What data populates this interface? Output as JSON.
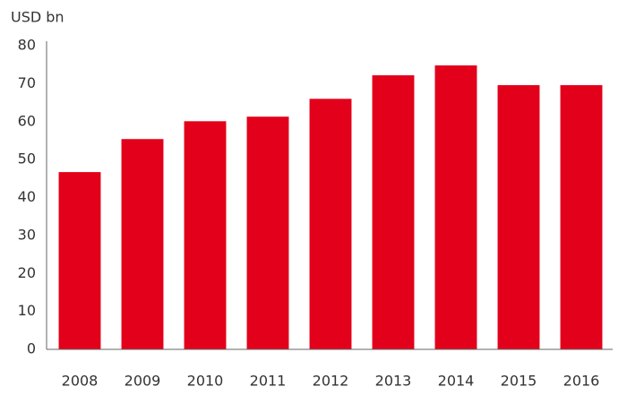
{
  "chart_data": {
    "type": "bar",
    "y_label": "USD bn",
    "categories": [
      "2008",
      "2009",
      "2010",
      "2011",
      "2012",
      "2013",
      "2014",
      "2015",
      "2016"
    ],
    "values": [
      46.7,
      55.4,
      60.1,
      61.3,
      66,
      72.2,
      74.8,
      69.6,
      69.6
    ],
    "color": "#e2001a",
    "ylim": [
      0,
      80
    ],
    "yticks": [
      0,
      10,
      20,
      30,
      40,
      50,
      60,
      70,
      80
    ],
    "grid": false
  }
}
